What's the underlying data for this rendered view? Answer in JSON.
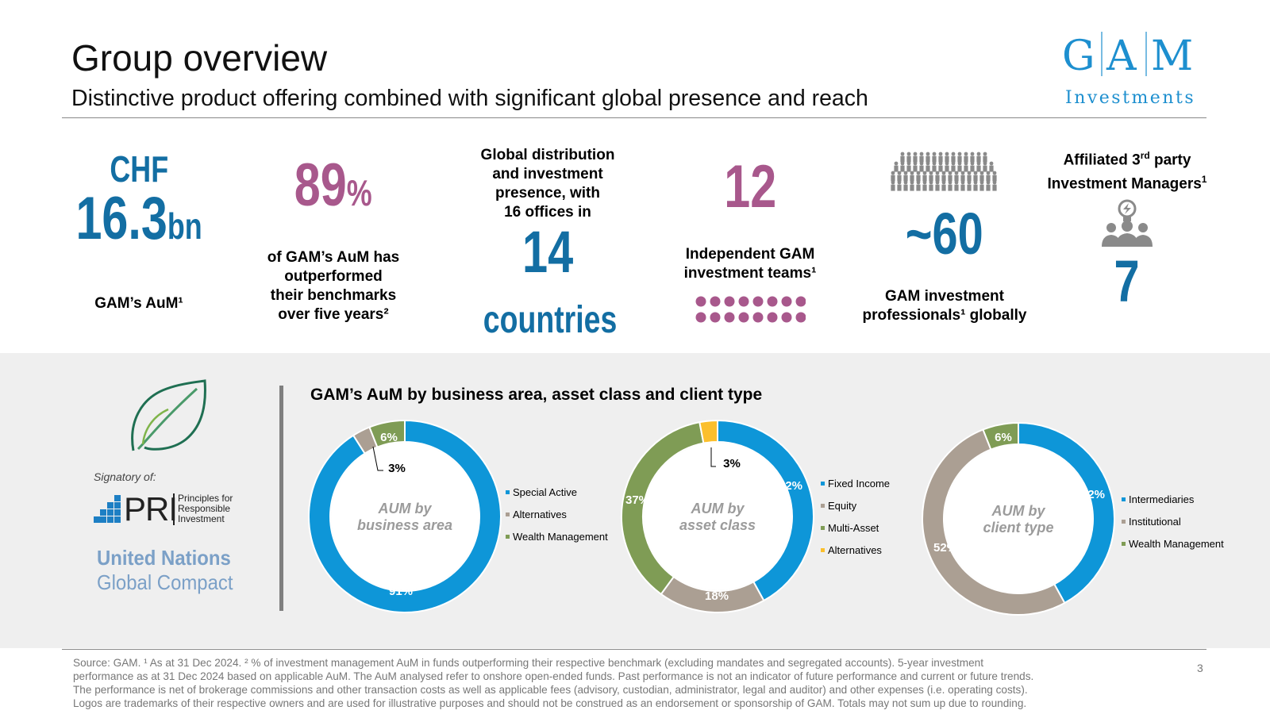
{
  "header": {
    "title": "Group overview",
    "subtitle": "Distinctive product offering combined with significant global presence and reach"
  },
  "logo": {
    "letters": [
      "G",
      "A",
      "M"
    ],
    "tagline": "Investments",
    "color": "#1d8fcf"
  },
  "stats": {
    "aum": {
      "currency": "CHF",
      "value": "16.3",
      "unit": "bn",
      "label": "GAM’s AuM¹"
    },
    "outperform": {
      "value": "89",
      "unit": "%",
      "label_lines": [
        "of GAM’s AuM has",
        "outperformed",
        "their benchmarks",
        "over five years²"
      ]
    },
    "countries": {
      "label_lines": [
        "Global distribution",
        "and investment",
        "presence, with",
        "16 offices in"
      ],
      "value": "14",
      "unit": "countries"
    },
    "teams": {
      "value": "12",
      "label_lines": [
        "Independent GAM",
        "investment teams¹"
      ],
      "dot_count": 16
    },
    "professionals": {
      "value": "~60",
      "label_lines": [
        "GAM investment",
        "professionals¹ globally"
      ]
    },
    "affiliated": {
      "label_line1_pre": "Affiliated 3",
      "label_line1_sup": "rd",
      "label_line1_post": " party",
      "label_line2_pre": "Investment Managers",
      "label_line2_sup": "1",
      "value": "7"
    }
  },
  "signatory": {
    "label": "Signatory of:",
    "pri_abbr": "PRI",
    "pri_full_lines": [
      "Principles for",
      "Responsible",
      "Investment"
    ],
    "un_line1": "United Nations",
    "un_line2": "Global Compact"
  },
  "colors": {
    "blue_dark": "#136ea3",
    "pink": "#a8588c",
    "donut_blue": "#0e96d8",
    "donut_taupe": "#ab9f93",
    "donut_green": "#7f9c55",
    "donut_yellow": "#fbbf2c"
  },
  "chart_section_title": "GAM’s AuM by business area, asset class and client type",
  "chart_data": [
    {
      "type": "pie",
      "center_label_lines": [
        "AUM by",
        "business area"
      ],
      "categories": [
        "Special Active",
        "Alternatives",
        "Wealth Management"
      ],
      "values": [
        91,
        3,
        6
      ],
      "labels": [
        "91%",
        "3%",
        "6%"
      ],
      "colors": [
        "#0e96d8",
        "#ab9f93",
        "#7f9c55"
      ],
      "legend": "right"
    },
    {
      "type": "pie",
      "center_label_lines": [
        "AUM by",
        "asset class"
      ],
      "categories": [
        "Fixed Income",
        "Equity",
        "Multi-Asset",
        "Alternatives"
      ],
      "values": [
        42,
        18,
        37,
        3
      ],
      "labels": [
        "42%",
        "18%",
        "37%",
        "3%"
      ],
      "colors": [
        "#0e96d8",
        "#ab9f93",
        "#7f9c55",
        "#fbbf2c"
      ],
      "legend": "right"
    },
    {
      "type": "pie",
      "center_label_lines": [
        "AUM by",
        "client type"
      ],
      "categories": [
        "Intermediaries",
        "Institutional",
        "Wealth Management"
      ],
      "values": [
        42,
        52,
        6
      ],
      "labels": [
        "42%",
        "52%",
        "6%"
      ],
      "colors": [
        "#0e96d8",
        "#ab9f93",
        "#7f9c55"
      ],
      "legend": "right"
    }
  ],
  "footer": {
    "lines": [
      "Source: GAM. ¹ As at 31 Dec 2024. ² % of investment management AuM in funds outperforming their respective benchmark (excluding mandates and segregated accounts). 5-year investment",
      "performance as at 31 Dec 2024 based on applicable AuM. The AuM analysed refer to onshore open-ended funds. Past performance is not an indicator of future performance and current or future trends.",
      "The performance is net of brokerage commissions and other transaction costs as well as applicable fees (advisory, custodian, administrator, legal and auditor) and other expenses (i.e. operating costs).",
      "Logos are trademarks of their respective owners and are used for illustrative purposes and should not be construed as an endorsement or sponsorship of GAM. Totals may not sum up due to rounding."
    ],
    "page_number": "3"
  }
}
